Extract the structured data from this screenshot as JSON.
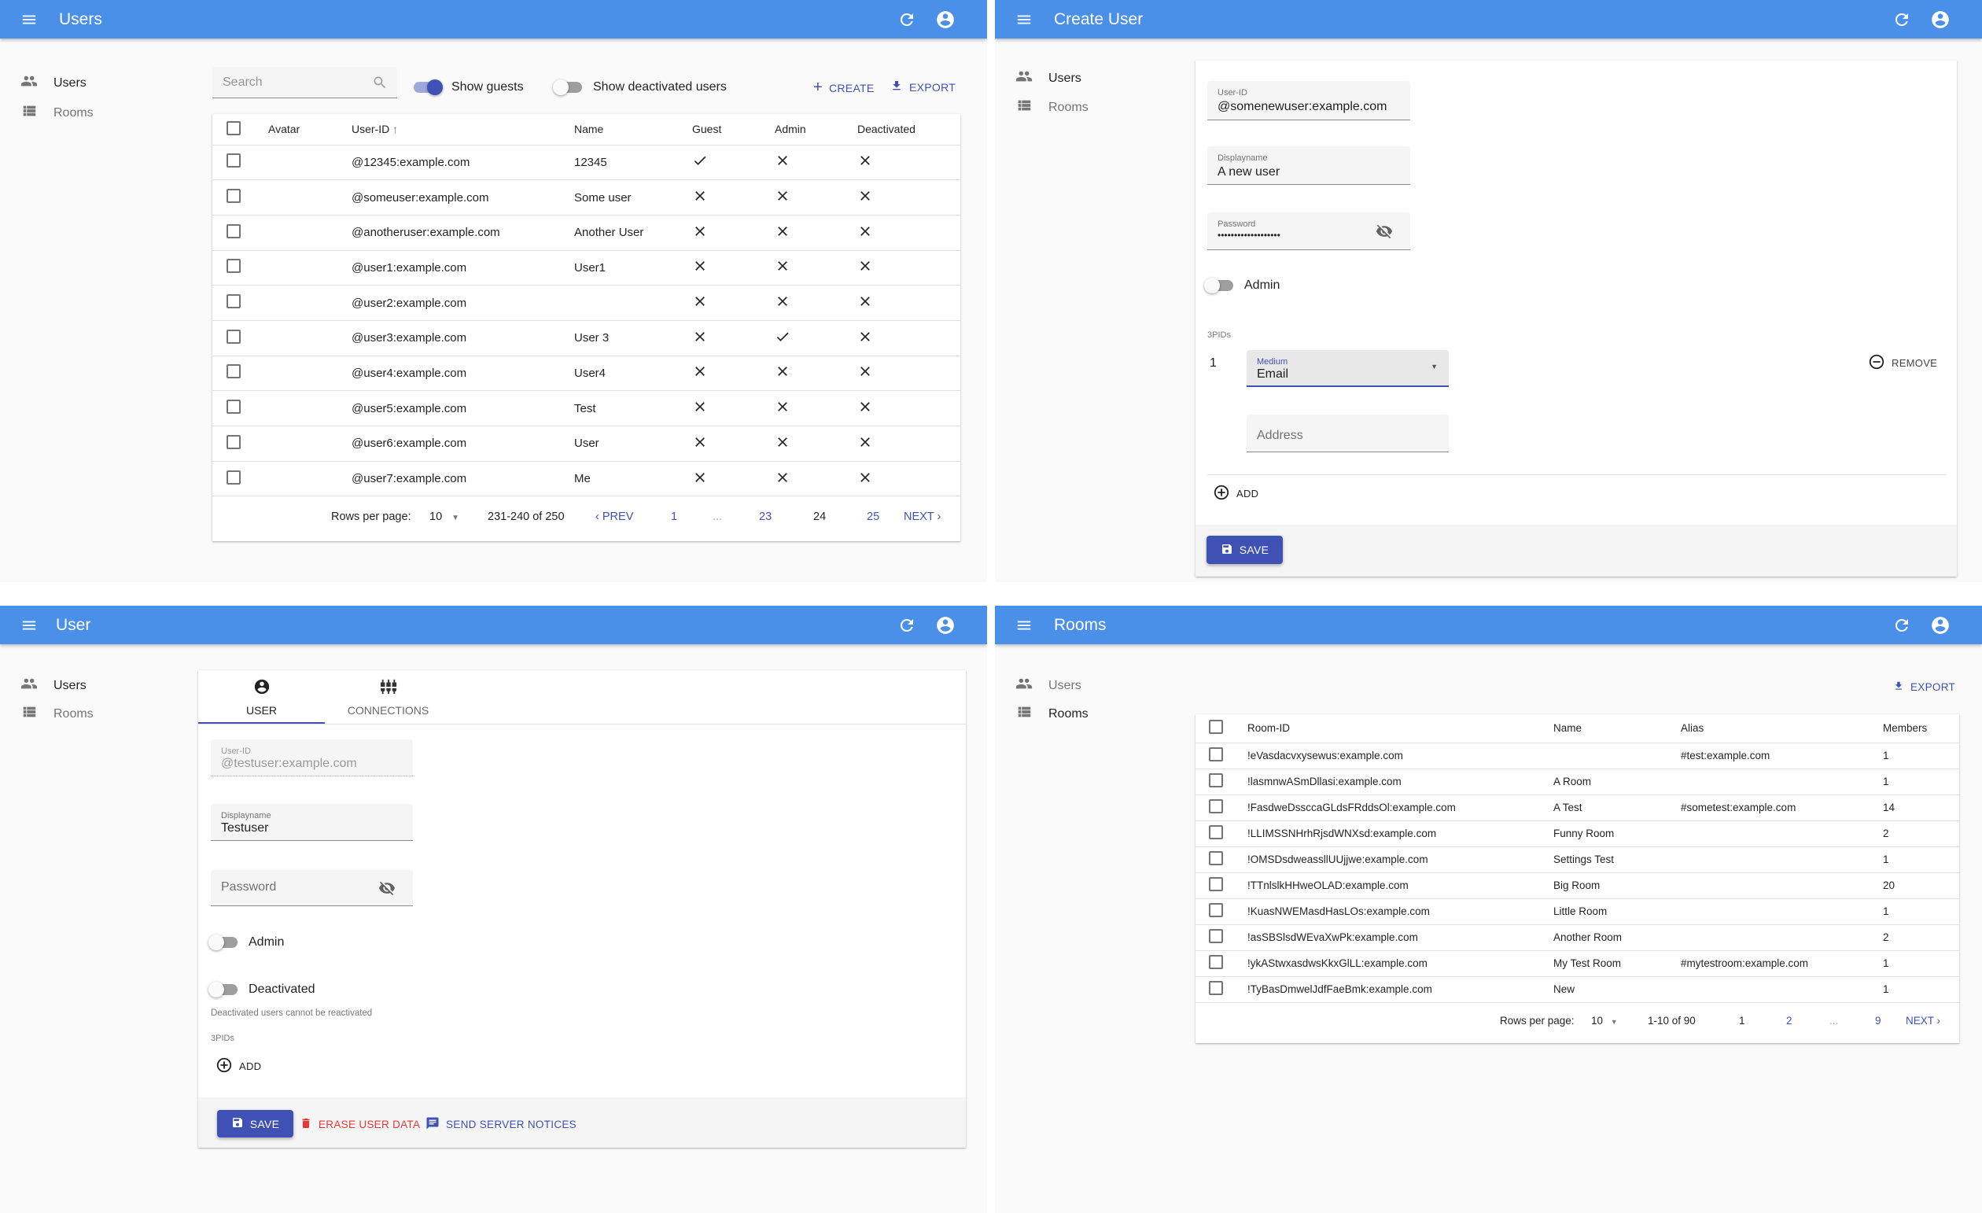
{
  "colors": {
    "appbar": "#4a8fe8",
    "primary": "#3f51b5",
    "danger": "#e53935"
  },
  "sidebar": {
    "users": "Users",
    "rooms": "Rooms"
  },
  "users_list": {
    "title": "Users",
    "search_placeholder": "Search",
    "show_guests": {
      "label": "Show guests",
      "on": true
    },
    "show_deactivated": {
      "label": "Show deactivated users",
      "on": false
    },
    "create": "CREATE",
    "export": "EXPORT",
    "columns": [
      "Avatar",
      "User-ID",
      "Name",
      "Guest",
      "Admin",
      "Deactivated"
    ],
    "sort": {
      "column": "User-ID",
      "direction": "ascending"
    },
    "rows": [
      {
        "id": "@12345:example.com",
        "name": "12345",
        "guest": true,
        "admin": false,
        "deactivated": false
      },
      {
        "id": "@someuser:example.com",
        "name": "Some user",
        "guest": false,
        "admin": false,
        "deactivated": false
      },
      {
        "id": "@anotheruser:example.com",
        "name": "Another User",
        "guest": false,
        "admin": false,
        "deactivated": false
      },
      {
        "id": "@user1:example.com",
        "name": "User1",
        "guest": false,
        "admin": false,
        "deactivated": false
      },
      {
        "id": "@user2:example.com",
        "name": "",
        "guest": false,
        "admin": false,
        "deactivated": false
      },
      {
        "id": "@user3:example.com",
        "name": "User 3",
        "guest": false,
        "admin": true,
        "deactivated": false
      },
      {
        "id": "@user4:example.com",
        "name": "User4",
        "guest": false,
        "admin": false,
        "deactivated": false
      },
      {
        "id": "@user5:example.com",
        "name": "Test",
        "guest": false,
        "admin": false,
        "deactivated": false
      },
      {
        "id": "@user6:example.com",
        "name": "User",
        "guest": false,
        "admin": false,
        "deactivated": false
      },
      {
        "id": "@user7:example.com",
        "name": "Me",
        "guest": false,
        "admin": false,
        "deactivated": false
      }
    ],
    "pagination": {
      "rows_label": "Rows per page:",
      "rows_value": "10",
      "range": "231-240 of 250",
      "prev": "PREV",
      "pages": [
        "1",
        "...",
        "23",
        "24",
        "25"
      ],
      "current": "24",
      "next": "NEXT"
    }
  },
  "create_user": {
    "title": "Create User",
    "user_id": {
      "label": "User-ID",
      "value": "@somenewuser:example.com"
    },
    "displayname": {
      "label": "Displayname",
      "value": "A new user"
    },
    "password": {
      "label": "Password",
      "value": "•••••••••••••••••••"
    },
    "admin": {
      "label": "Admin",
      "on": false
    },
    "threepids_label": "3PIDs",
    "threepid": {
      "index": "1",
      "medium_label": "Medium",
      "medium_value": "Email",
      "address_placeholder": "Address",
      "remove": "REMOVE"
    },
    "add": "ADD",
    "save": "SAVE"
  },
  "edit_user": {
    "title": "User",
    "tabs": [
      "USER",
      "CONNECTIONS"
    ],
    "active_tab": "USER",
    "user_id": {
      "label": "User-ID",
      "value": "@testuser:example.com"
    },
    "displayname": {
      "label": "Displayname",
      "value": "Testuser"
    },
    "password": {
      "placeholder": "Password"
    },
    "admin": {
      "label": "Admin",
      "on": false
    },
    "deactivated": {
      "label": "Deactivated",
      "on": false,
      "help": "Deactivated users cannot be reactivated"
    },
    "threepids_label": "3PIDs",
    "add": "ADD",
    "save": "SAVE",
    "erase": "ERASE USER DATA",
    "notices": "SEND SERVER NOTICES"
  },
  "rooms": {
    "title": "Rooms",
    "export": "EXPORT",
    "columns": [
      "Room-ID",
      "Name",
      "Alias",
      "Members"
    ],
    "rows": [
      {
        "id": "!eVasdacvxysewus:example.com",
        "name": "",
        "alias": "#test:example.com",
        "members": "1"
      },
      {
        "id": "!lasmnwASmDllasi:example.com",
        "name": "A Room",
        "alias": "",
        "members": "1"
      },
      {
        "id": "!FasdweDssccaGLdsFRddsOl:example.com",
        "name": "A Test",
        "alias": "#sometest:example.com",
        "members": "14"
      },
      {
        "id": "!LLIMSSNHrhRjsdWNXsd:example.com",
        "name": "Funny Room",
        "alias": "",
        "members": "2"
      },
      {
        "id": "!OMSDsdweassllUUjjwe:example.com",
        "name": "Settings Test",
        "alias": "",
        "members": "1"
      },
      {
        "id": "!TTnlslkHHweOLAD:example.com",
        "name": "Big Room",
        "alias": "",
        "members": "20"
      },
      {
        "id": "!KuasNWEMasdHasLOs:example.com",
        "name": "Little Room",
        "alias": "",
        "members": "1"
      },
      {
        "id": "!asSBSlsdWEvaXwPk:example.com",
        "name": "Another Room",
        "alias": "",
        "members": "2"
      },
      {
        "id": "!ykAStwxasdwsKkxGlLL:example.com",
        "name": "My Test Room",
        "alias": "#mytestroom:example.com",
        "members": "1"
      },
      {
        "id": "!TyBasDmwelJdfFaeBmk:example.com",
        "name": "New",
        "alias": "",
        "members": "1"
      }
    ],
    "pagination": {
      "rows_label": "Rows per page:",
      "rows_value": "10",
      "range": "1-10 of 90",
      "pages": [
        "1",
        "2",
        "...",
        "9"
      ],
      "current": "1",
      "next": "NEXT"
    }
  }
}
